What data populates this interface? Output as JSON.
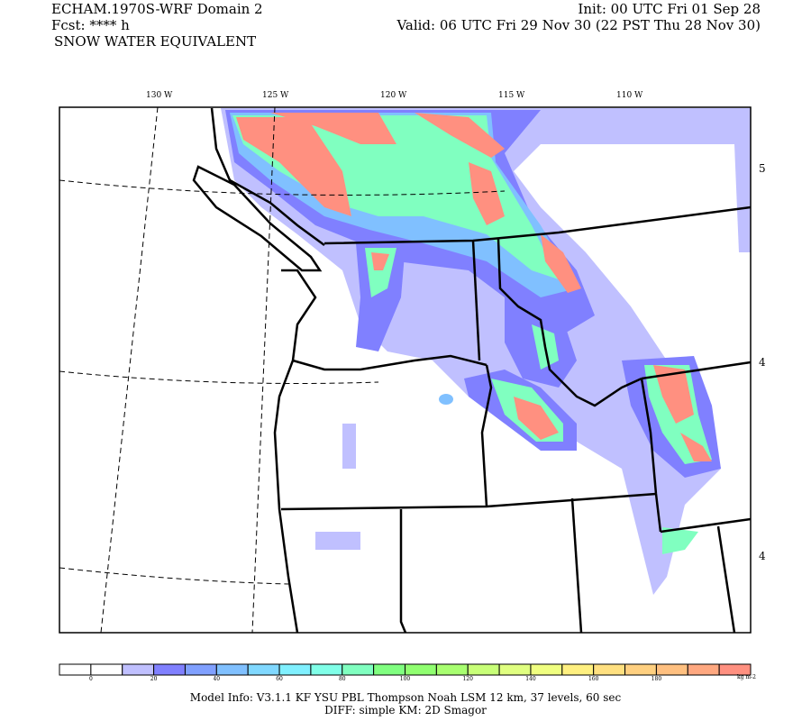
{
  "header": {
    "model_title": "ECHAM.1970S-WRF Domain 2",
    "forecast": "Fcst: **** h",
    "field": "SNOW WATER EQUIVALENT",
    "init": "Init: 00 UTC Fri 01 Sep 28",
    "valid": "Valid: 06 UTC Fri 29 Nov 30 (22 PST Thu 28 Nov 30)"
  },
  "map": {
    "longitude_labels": [
      "130 W",
      "125 W",
      "120 W",
      "115 W",
      "110 W"
    ],
    "latitude_labels": [
      "5",
      "4",
      "4"
    ]
  },
  "colorbar": {
    "colors": [
      "#ffffff",
      "#ffffff",
      "#c0c0ff",
      "#8080ff",
      "#80a0ff",
      "#80c0ff",
      "#80d8ff",
      "#80f0ff",
      "#80ffe8",
      "#80ffc0",
      "#80ff80",
      "#90ff70",
      "#a8ff70",
      "#c8ff78",
      "#e0ff80",
      "#f0ff80",
      "#fff080",
      "#ffe080",
      "#ffd080",
      "#ffc080",
      "#ffa880",
      "#ff9080"
    ],
    "labels": [
      "0",
      "20",
      "40",
      "60",
      "80",
      "100",
      "120",
      "140",
      "160",
      "180"
    ],
    "units": "kg m-2"
  },
  "footer": {
    "line1": "Model Info: V3.1.1    KF       YSU PBL   Thompson     Noah LSM   12 km,     37 levels,     60 sec",
    "line2": "DIFF: simple KM: 2D Smagor"
  }
}
